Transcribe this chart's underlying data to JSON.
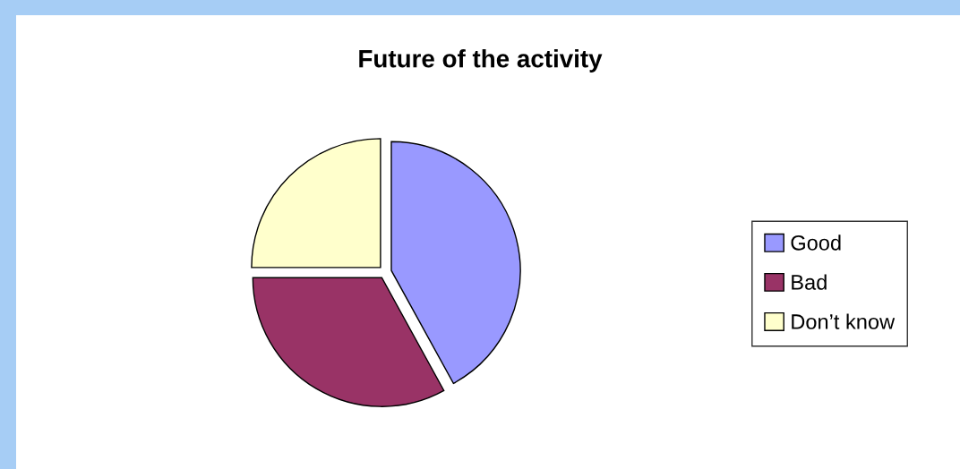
{
  "chart_data": {
    "type": "pie",
    "title": "Future of the activity",
    "categories": [
      "Good",
      "Bad",
      "Don’t know"
    ],
    "values": [
      42,
      33,
      25
    ],
    "colors": [
      "#9999ff",
      "#993366",
      "#ffffcc"
    ],
    "legend": "right"
  }
}
